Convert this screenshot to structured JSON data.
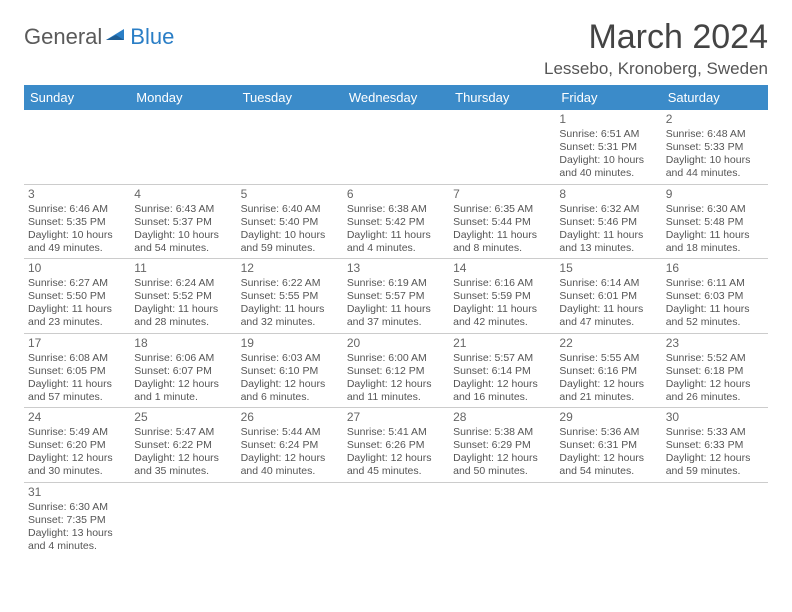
{
  "logo": {
    "general": "General",
    "blue": "Blue"
  },
  "title": "March 2024",
  "location": "Lessebo, Kronoberg, Sweden",
  "header_bg": "#3b8bc9",
  "weekdays": [
    "Sunday",
    "Monday",
    "Tuesday",
    "Wednesday",
    "Thursday",
    "Friday",
    "Saturday"
  ],
  "weeks": [
    [
      null,
      null,
      null,
      null,
      null,
      {
        "n": "1",
        "sr": "Sunrise: 6:51 AM",
        "ss": "Sunset: 5:31 PM",
        "dl1": "Daylight: 10 hours",
        "dl2": "and 40 minutes."
      },
      {
        "n": "2",
        "sr": "Sunrise: 6:48 AM",
        "ss": "Sunset: 5:33 PM",
        "dl1": "Daylight: 10 hours",
        "dl2": "and 44 minutes."
      }
    ],
    [
      {
        "n": "3",
        "sr": "Sunrise: 6:46 AM",
        "ss": "Sunset: 5:35 PM",
        "dl1": "Daylight: 10 hours",
        "dl2": "and 49 minutes."
      },
      {
        "n": "4",
        "sr": "Sunrise: 6:43 AM",
        "ss": "Sunset: 5:37 PM",
        "dl1": "Daylight: 10 hours",
        "dl2": "and 54 minutes."
      },
      {
        "n": "5",
        "sr": "Sunrise: 6:40 AM",
        "ss": "Sunset: 5:40 PM",
        "dl1": "Daylight: 10 hours",
        "dl2": "and 59 minutes."
      },
      {
        "n": "6",
        "sr": "Sunrise: 6:38 AM",
        "ss": "Sunset: 5:42 PM",
        "dl1": "Daylight: 11 hours",
        "dl2": "and 4 minutes."
      },
      {
        "n": "7",
        "sr": "Sunrise: 6:35 AM",
        "ss": "Sunset: 5:44 PM",
        "dl1": "Daylight: 11 hours",
        "dl2": "and 8 minutes."
      },
      {
        "n": "8",
        "sr": "Sunrise: 6:32 AM",
        "ss": "Sunset: 5:46 PM",
        "dl1": "Daylight: 11 hours",
        "dl2": "and 13 minutes."
      },
      {
        "n": "9",
        "sr": "Sunrise: 6:30 AM",
        "ss": "Sunset: 5:48 PM",
        "dl1": "Daylight: 11 hours",
        "dl2": "and 18 minutes."
      }
    ],
    [
      {
        "n": "10",
        "sr": "Sunrise: 6:27 AM",
        "ss": "Sunset: 5:50 PM",
        "dl1": "Daylight: 11 hours",
        "dl2": "and 23 minutes."
      },
      {
        "n": "11",
        "sr": "Sunrise: 6:24 AM",
        "ss": "Sunset: 5:52 PM",
        "dl1": "Daylight: 11 hours",
        "dl2": "and 28 minutes."
      },
      {
        "n": "12",
        "sr": "Sunrise: 6:22 AM",
        "ss": "Sunset: 5:55 PM",
        "dl1": "Daylight: 11 hours",
        "dl2": "and 32 minutes."
      },
      {
        "n": "13",
        "sr": "Sunrise: 6:19 AM",
        "ss": "Sunset: 5:57 PM",
        "dl1": "Daylight: 11 hours",
        "dl2": "and 37 minutes."
      },
      {
        "n": "14",
        "sr": "Sunrise: 6:16 AM",
        "ss": "Sunset: 5:59 PM",
        "dl1": "Daylight: 11 hours",
        "dl2": "and 42 minutes."
      },
      {
        "n": "15",
        "sr": "Sunrise: 6:14 AM",
        "ss": "Sunset: 6:01 PM",
        "dl1": "Daylight: 11 hours",
        "dl2": "and 47 minutes."
      },
      {
        "n": "16",
        "sr": "Sunrise: 6:11 AM",
        "ss": "Sunset: 6:03 PM",
        "dl1": "Daylight: 11 hours",
        "dl2": "and 52 minutes."
      }
    ],
    [
      {
        "n": "17",
        "sr": "Sunrise: 6:08 AM",
        "ss": "Sunset: 6:05 PM",
        "dl1": "Daylight: 11 hours",
        "dl2": "and 57 minutes."
      },
      {
        "n": "18",
        "sr": "Sunrise: 6:06 AM",
        "ss": "Sunset: 6:07 PM",
        "dl1": "Daylight: 12 hours",
        "dl2": "and 1 minute."
      },
      {
        "n": "19",
        "sr": "Sunrise: 6:03 AM",
        "ss": "Sunset: 6:10 PM",
        "dl1": "Daylight: 12 hours",
        "dl2": "and 6 minutes."
      },
      {
        "n": "20",
        "sr": "Sunrise: 6:00 AM",
        "ss": "Sunset: 6:12 PM",
        "dl1": "Daylight: 12 hours",
        "dl2": "and 11 minutes."
      },
      {
        "n": "21",
        "sr": "Sunrise: 5:57 AM",
        "ss": "Sunset: 6:14 PM",
        "dl1": "Daylight: 12 hours",
        "dl2": "and 16 minutes."
      },
      {
        "n": "22",
        "sr": "Sunrise: 5:55 AM",
        "ss": "Sunset: 6:16 PM",
        "dl1": "Daylight: 12 hours",
        "dl2": "and 21 minutes."
      },
      {
        "n": "23",
        "sr": "Sunrise: 5:52 AM",
        "ss": "Sunset: 6:18 PM",
        "dl1": "Daylight: 12 hours",
        "dl2": "and 26 minutes."
      }
    ],
    [
      {
        "n": "24",
        "sr": "Sunrise: 5:49 AM",
        "ss": "Sunset: 6:20 PM",
        "dl1": "Daylight: 12 hours",
        "dl2": "and 30 minutes."
      },
      {
        "n": "25",
        "sr": "Sunrise: 5:47 AM",
        "ss": "Sunset: 6:22 PM",
        "dl1": "Daylight: 12 hours",
        "dl2": "and 35 minutes."
      },
      {
        "n": "26",
        "sr": "Sunrise: 5:44 AM",
        "ss": "Sunset: 6:24 PM",
        "dl1": "Daylight: 12 hours",
        "dl2": "and 40 minutes."
      },
      {
        "n": "27",
        "sr": "Sunrise: 5:41 AM",
        "ss": "Sunset: 6:26 PM",
        "dl1": "Daylight: 12 hours",
        "dl2": "and 45 minutes."
      },
      {
        "n": "28",
        "sr": "Sunrise: 5:38 AM",
        "ss": "Sunset: 6:29 PM",
        "dl1": "Daylight: 12 hours",
        "dl2": "and 50 minutes."
      },
      {
        "n": "29",
        "sr": "Sunrise: 5:36 AM",
        "ss": "Sunset: 6:31 PM",
        "dl1": "Daylight: 12 hours",
        "dl2": "and 54 minutes."
      },
      {
        "n": "30",
        "sr": "Sunrise: 5:33 AM",
        "ss": "Sunset: 6:33 PM",
        "dl1": "Daylight: 12 hours",
        "dl2": "and 59 minutes."
      }
    ],
    [
      {
        "n": "31",
        "sr": "Sunrise: 6:30 AM",
        "ss": "Sunset: 7:35 PM",
        "dl1": "Daylight: 13 hours",
        "dl2": "and 4 minutes."
      },
      null,
      null,
      null,
      null,
      null,
      null
    ]
  ]
}
